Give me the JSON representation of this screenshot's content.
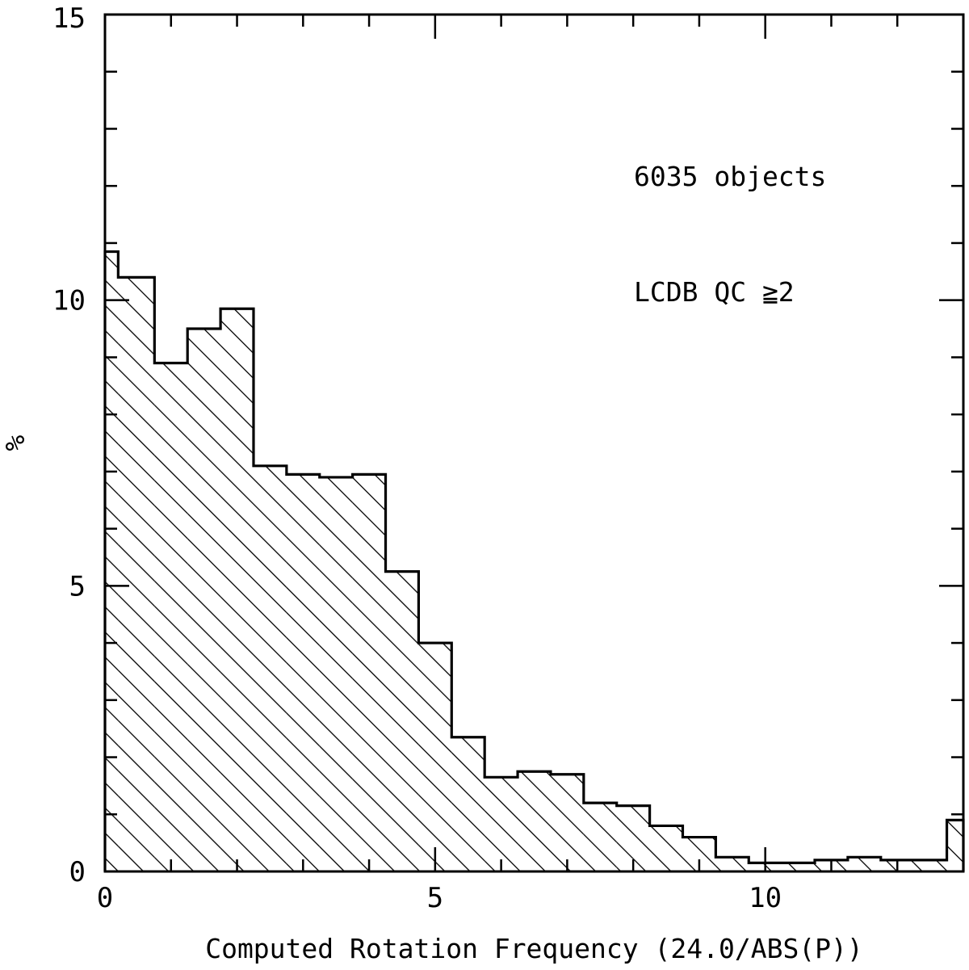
{
  "chart_data": {
    "type": "bar",
    "xlabel": "Computed Rotation Frequency (24.0/ABS(P))",
    "ylabel": "%",
    "xlim": [
      0,
      13
    ],
    "ylim": [
      0,
      15
    ],
    "x_ticks": [
      "0",
      "5",
      "10"
    ],
    "y_ticks": [
      "0",
      "5",
      "10",
      "15"
    ],
    "annotations": [
      "6035 objects",
      "LCDB QC ≧2"
    ],
    "grid": false,
    "fill": "diagonal-hatch",
    "bins": [
      {
        "x0": 0.0,
        "x1": 0.2,
        "value": 10.85
      },
      {
        "x0": 0.2,
        "x1": 0.75,
        "value": 10.4
      },
      {
        "x0": 0.75,
        "x1": 1.25,
        "value": 8.9
      },
      {
        "x0": 1.25,
        "x1": 1.75,
        "value": 9.5
      },
      {
        "x0": 1.75,
        "x1": 2.25,
        "value": 9.85
      },
      {
        "x0": 2.25,
        "x1": 2.75,
        "value": 7.1
      },
      {
        "x0": 2.75,
        "x1": 3.25,
        "value": 6.95
      },
      {
        "x0": 3.25,
        "x1": 3.75,
        "value": 6.9
      },
      {
        "x0": 3.75,
        "x1": 4.25,
        "value": 6.95
      },
      {
        "x0": 4.25,
        "x1": 4.75,
        "value": 5.25
      },
      {
        "x0": 4.75,
        "x1": 5.25,
        "value": 4.0
      },
      {
        "x0": 5.25,
        "x1": 5.75,
        "value": 2.35
      },
      {
        "x0": 5.75,
        "x1": 6.25,
        "value": 1.65
      },
      {
        "x0": 6.25,
        "x1": 6.75,
        "value": 1.75
      },
      {
        "x0": 6.75,
        "x1": 7.25,
        "value": 1.7
      },
      {
        "x0": 7.25,
        "x1": 7.75,
        "value": 1.2
      },
      {
        "x0": 7.75,
        "x1": 8.25,
        "value": 1.15
      },
      {
        "x0": 8.25,
        "x1": 8.75,
        "value": 0.8
      },
      {
        "x0": 8.75,
        "x1": 9.25,
        "value": 0.6
      },
      {
        "x0": 9.25,
        "x1": 9.75,
        "value": 0.25
      },
      {
        "x0": 9.75,
        "x1": 10.25,
        "value": 0.15
      },
      {
        "x0": 10.25,
        "x1": 10.75,
        "value": 0.15
      },
      {
        "x0": 10.75,
        "x1": 11.25,
        "value": 0.2
      },
      {
        "x0": 11.25,
        "x1": 11.75,
        "value": 0.25
      },
      {
        "x0": 11.75,
        "x1": 12.25,
        "value": 0.2
      },
      {
        "x0": 12.25,
        "x1": 12.75,
        "value": 0.2
      },
      {
        "x0": 12.75,
        "x1": 13.0,
        "value": 0.9
      }
    ]
  }
}
